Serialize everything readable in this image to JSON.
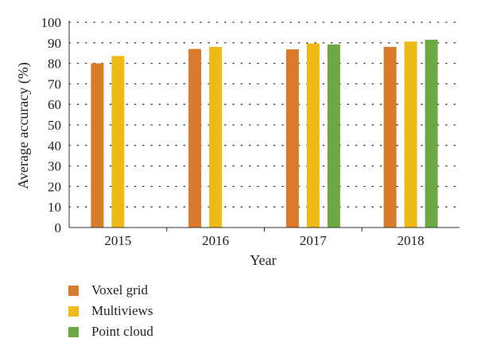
{
  "chart_data": {
    "type": "bar",
    "categories": [
      "2015",
      "2016",
      "2017",
      "2018"
    ],
    "series": [
      {
        "name": "Voxel grid",
        "color": "#D97B2B",
        "values": [
          80.0,
          87.0,
          86.8,
          88.0
        ]
      },
      {
        "name": "Multiviews",
        "color": "#EDBA16",
        "values": [
          83.6,
          88.0,
          89.7,
          90.6
        ]
      },
      {
        "name": "Point cloud",
        "color": "#6DA942",
        "values": [
          null,
          null,
          89.2,
          91.5
        ]
      }
    ],
    "title": "",
    "xlabel": "Year",
    "ylabel": "Average accuracy (%)",
    "ylim": [
      0,
      100
    ],
    "yticks": [
      0,
      10,
      20,
      30,
      40,
      50,
      60,
      70,
      80,
      90,
      100
    ],
    "grid": "dotted horizontal",
    "legend_position": "bottom-left"
  }
}
